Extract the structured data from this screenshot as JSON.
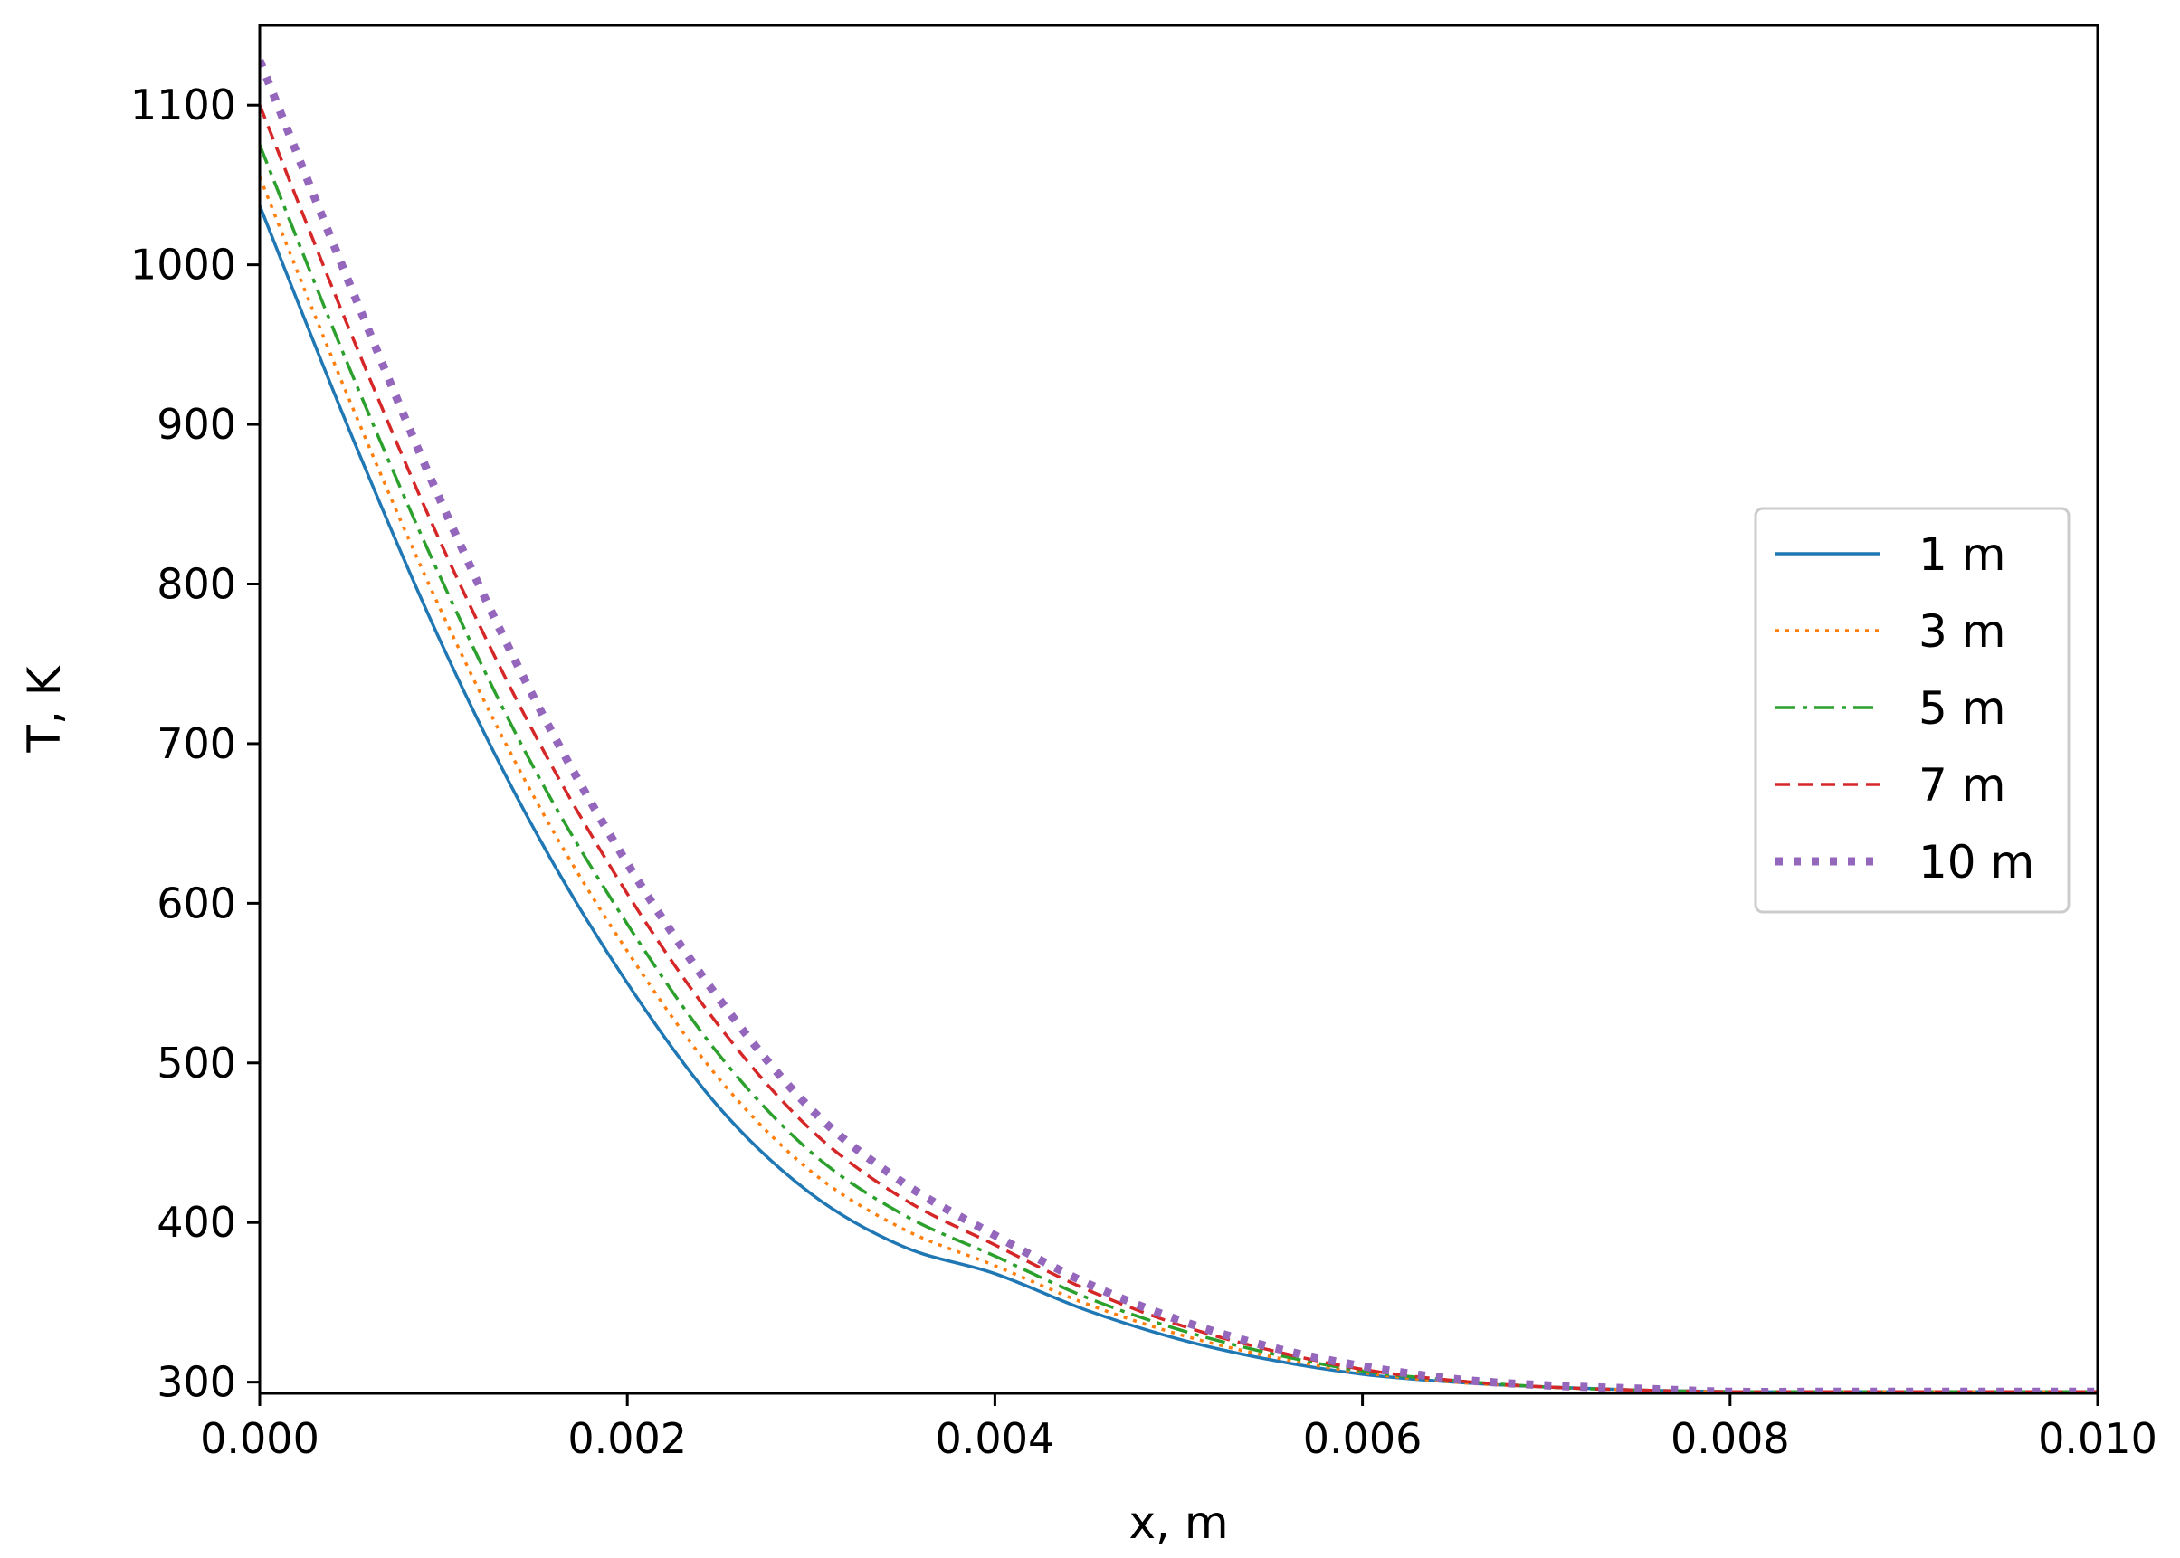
{
  "chart_data": {
    "type": "line",
    "title": "",
    "xlabel": "x, m",
    "ylabel": "T, K",
    "xlim": [
      0,
      0.01
    ],
    "ylim": [
      293,
      1150
    ],
    "xticks": [
      0,
      0.002,
      0.004,
      0.006,
      0.008,
      0.01
    ],
    "xtick_labels": [
      "0.000",
      "0.002",
      "0.004",
      "0.006",
      "0.008",
      "0.010"
    ],
    "yticks": [
      300,
      400,
      500,
      600,
      700,
      800,
      900,
      1000,
      1100
    ],
    "ytick_labels": [
      "300",
      "400",
      "500",
      "600",
      "700",
      "800",
      "900",
      "1000",
      "1100"
    ],
    "grid": false,
    "legend_position": "center-right",
    "x": [
      0,
      0.0005,
      0.001,
      0.0015,
      0.002,
      0.0025,
      0.003,
      0.0035,
      0.004,
      0.0045,
      0.005,
      0.0055,
      0.006,
      0.0065,
      0.007,
      0.0075,
      0.008,
      0.0085,
      0.009,
      0.0095,
      0.01
    ],
    "series": [
      {
        "name": "1 m",
        "color": "#1f77b4",
        "style": "solid",
        "values": [
          1037,
          893,
          760,
          645,
          550,
          472,
          418,
          385,
          368,
          345,
          327,
          314,
          305,
          300,
          297,
          295,
          294,
          294,
          294,
          294,
          294
        ]
      },
      {
        "name": "3 m",
        "color": "#ff7f0e",
        "style": "dotted",
        "values": [
          1055,
          912,
          780,
          665,
          570,
          490,
          432,
          396,
          373,
          349,
          330,
          316,
          306,
          300,
          297,
          295,
          294,
          294,
          294,
          294,
          294
        ]
      },
      {
        "name": "5 m",
        "color": "#2ca02c",
        "style": "dashdot",
        "values": [
          1075,
          932,
          800,
          683,
          587,
          505,
          444,
          405,
          379,
          353,
          333,
          318,
          307,
          301,
          297,
          295,
          294,
          294,
          294,
          294,
          294
        ]
      },
      {
        "name": "7 m",
        "color": "#d62728",
        "style": "dashed",
        "values": [
          1100,
          956,
          822,
          705,
          606,
          523,
          458,
          415,
          386,
          358,
          336,
          320,
          308,
          301,
          297,
          295,
          294,
          294,
          294,
          294,
          294
        ]
      },
      {
        "name": "10 m",
        "color": "#9467bd",
        "style": "thickdotted",
        "values": [
          1128,
          985,
          848,
          727,
          625,
          540,
          471,
          425,
          392,
          362,
          339,
          322,
          310,
          302,
          298,
          296,
          294,
          294,
          294,
          294,
          294
        ]
      }
    ]
  }
}
